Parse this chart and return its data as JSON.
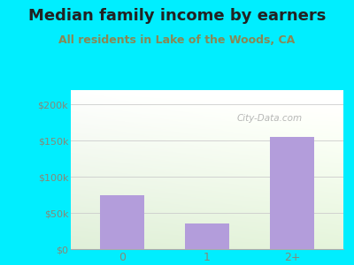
{
  "title": "Median family income by earners",
  "subtitle": "All residents in Lake of the Woods, CA",
  "categories": [
    "0",
    "1",
    "2+"
  ],
  "values": [
    75000,
    35000,
    155000
  ],
  "bar_color": "#b39ddb",
  "ylim": [
    0,
    220000
  ],
  "yticks": [
    0,
    50000,
    100000,
    150000,
    200000
  ],
  "ytick_labels": [
    "$0",
    "$50k",
    "$100k",
    "$150k",
    "$200k"
  ],
  "background_outer": "#00eeff",
  "watermark": "City-Data.com",
  "title_fontsize": 13,
  "subtitle_fontsize": 9,
  "title_color": "#222222",
  "subtitle_color": "#888855",
  "tick_color": "#888877",
  "axis_color": "#aaaaaa",
  "grid_color": "#cccccc"
}
